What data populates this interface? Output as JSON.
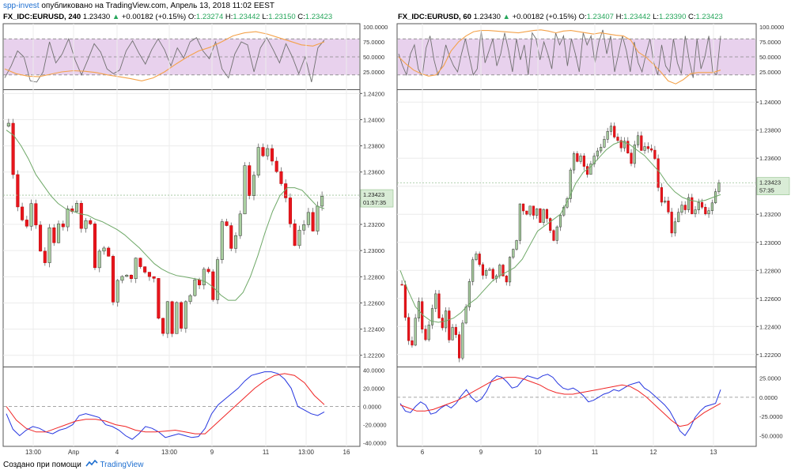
{
  "header": {
    "publisher": "spp-invest",
    "published_text": "опубликовано на TradingView.com, Апрель 13, 2018 11:02 EEST"
  },
  "footer": {
    "created_text": "Создано при помощи",
    "brand": "TradingView"
  },
  "colors": {
    "up_candle": "#a9cfa0",
    "down_candle": "#e8151d",
    "sma_line": "#6ea867",
    "osc_gray": "#707070",
    "osc_orange": "#f4a24a",
    "band_fill": "#e4c9ea",
    "macd_blue": "#2636e0",
    "macd_red": "#f02525"
  },
  "charts": [
    {
      "symbol": "FX_IDC:EURUSD, 240",
      "last": "1.23430",
      "change": "+0.00182 (+0.15%)",
      "o_label": "O:",
      "o": "1.23274",
      "h_label": "H:",
      "h": "1.23442",
      "l_label": "L:",
      "l": "1.23150",
      "c_label": "C:",
      "c": "1.23423",
      "price_tag": "1.23423",
      "countdown": "01:57:35",
      "top_ticks": [
        "100.0000",
        "75.0000",
        "50.0000",
        "25.0000"
      ],
      "price_ticks": [
        "1.24200",
        "1.24000",
        "1.23800",
        "1.23600",
        "1.23400",
        "1.23200",
        "1.23000",
        "1.22800",
        "1.22600",
        "1.22400",
        "1.22200"
      ],
      "bottom_ticks": [
        "40.0000",
        "20.0000",
        "0.0000",
        "-20.0000",
        "-40.0000"
      ],
      "x_ticks": [
        "13:00",
        "Апр",
        "4",
        "13:00",
        "9",
        "11",
        "13:00",
        "16"
      ]
    },
    {
      "symbol": "FX_IDC:EURUSD, 60",
      "last": "1.23430",
      "change": "+0.00182 (+0.15%)",
      "o_label": "O:",
      "o": "1.23407",
      "h_label": "H:",
      "h": "1.23442",
      "l_label": "L:",
      "l": "1.23390",
      "c_label": "C:",
      "c": "1.23423",
      "price_tag": "1.23423",
      "countdown": "57:35",
      "top_ticks": [
        "100.0000",
        "75.0000",
        "50.0000",
        "25.0000"
      ],
      "price_ticks": [
        "1.24000",
        "1.23800",
        "1.23600",
        "1.23400",
        "1.23200",
        "1.23000",
        "1.22800",
        "1.22600",
        "1.22400",
        "1.22200"
      ],
      "bottom_ticks": [
        "25.0000",
        "0.0000",
        "-25.0000",
        "-50.0000"
      ],
      "x_ticks": [
        "6",
        "9",
        "10",
        "11",
        "12",
        "13"
      ]
    }
  ],
  "chart_data": [
    {
      "type": "candlestick",
      "symbol": "FX_IDC:EURUSD",
      "timeframe": "240",
      "ylim": [
        1.2212,
        1.2422
      ],
      "x_labels": [
        "13:00",
        "Апр",
        "4",
        "13:00",
        "9",
        "11",
        "13:00",
        "16"
      ],
      "close_path": [
        1.2395,
        1.2356,
        1.2332,
        1.2322,
        1.2318,
        1.2338,
        1.2322,
        1.2302,
        1.2293,
        1.2318,
        1.2306,
        1.2322,
        1.2318,
        1.233,
        1.2328,
        1.2336,
        1.2316,
        1.2322,
        1.2318,
        1.2286,
        1.2302,
        1.2302,
        1.2298,
        1.2262,
        1.2278,
        1.2282,
        1.2282,
        1.2278,
        1.2292,
        1.2286,
        1.2282,
        1.228,
        1.2278,
        1.2248,
        1.2236,
        1.2262,
        1.2238,
        1.2262,
        1.2242,
        1.2262,
        1.2266,
        1.2278,
        1.2272,
        1.2284,
        1.2282,
        1.2262,
        1.2292,
        1.2322,
        1.2318,
        1.2302,
        1.2312,
        1.2328,
        1.2366,
        1.2342,
        1.2358,
        1.238,
        1.2374,
        1.2376,
        1.2366,
        1.2358,
        1.235,
        1.2338,
        1.2318,
        1.2302,
        1.2318,
        1.2322,
        1.233,
        1.2316,
        1.2334,
        1.2342
      ],
      "sma_path": [
        1.2392,
        1.2388,
        1.238,
        1.237,
        1.2358,
        1.235,
        1.2342,
        1.2336,
        1.2332,
        1.233,
        1.2328,
        1.2327,
        1.2324,
        1.2322,
        1.2319,
        1.2316,
        1.2312,
        1.2307,
        1.2302,
        1.2296,
        1.229,
        1.2286,
        1.2283,
        1.2281,
        1.228,
        1.2279,
        1.2278,
        1.2276,
        1.2272,
        1.2266,
        1.2262,
        1.2262,
        1.2268,
        1.228,
        1.2296,
        1.2314,
        1.233,
        1.2342,
        1.2348,
        1.2348,
        1.2346,
        1.234,
        1.2334,
        1.2332
      ],
      "stoch_rsi_k": [
        15,
        35,
        60,
        50,
        10,
        8,
        25,
        75,
        40,
        55,
        80,
        45,
        20,
        45,
        72,
        58,
        30,
        22,
        28,
        60,
        77,
        56,
        38,
        62,
        80,
        62,
        35,
        65,
        48,
        75,
        82,
        60,
        47,
        75,
        30,
        15,
        55,
        75,
        70,
        25,
        65,
        82,
        62,
        40,
        72,
        50,
        22,
        50,
        8,
        65,
        78
      ],
      "stoch_rsi_d": [
        30,
        22,
        18,
        17,
        21,
        25,
        27,
        26,
        24,
        20,
        17,
        14,
        10,
        15,
        25,
        38,
        50,
        60,
        66,
        75,
        85,
        90,
        92,
        88,
        82,
        76,
        70,
        68,
        75
      ],
      "macd": [
        -8,
        -25,
        -32,
        -26,
        -22,
        -24,
        -28,
        -30,
        -26,
        -24,
        -20,
        -10,
        -8,
        -10,
        -12,
        -20,
        -22,
        -26,
        -32,
        -36,
        -30,
        -22,
        -24,
        -28,
        -34,
        -32,
        -30,
        -32,
        -34,
        -33,
        -24,
        -8,
        2,
        8,
        14,
        20,
        28,
        34,
        36,
        38,
        38,
        36,
        30,
        20,
        0,
        -4,
        -8,
        -10,
        -6
      ],
      "macd_signal": [
        0,
        -15,
        -24,
        -28,
        -28,
        -24,
        -20,
        -16,
        -14,
        -14,
        -16,
        -20,
        -22,
        -26,
        -28,
        -28,
        -27,
        -26,
        -28,
        -30,
        -30,
        -20,
        -10,
        0,
        10,
        20,
        28,
        34,
        36,
        34,
        26,
        12,
        2
      ]
    },
    {
      "type": "candlestick",
      "symbol": "FX_IDC:EURUSD",
      "timeframe": "60",
      "ylim": [
        1.2212,
        1.2408
      ],
      "x_labels": [
        "6",
        "9",
        "10",
        "11",
        "12",
        "13"
      ],
      "close_path": [
        1.227,
        1.2248,
        1.2232,
        1.2228,
        1.2244,
        1.2256,
        1.2238,
        1.223,
        1.224,
        1.2252,
        1.2262,
        1.2246,
        1.224,
        1.2252,
        1.2232,
        1.224,
        1.2236,
        1.2218,
        1.2244,
        1.2252,
        1.227,
        1.2286,
        1.229,
        1.2282,
        1.2276,
        1.228,
        1.2282,
        1.2276,
        1.2278,
        1.2284,
        1.2278,
        1.2272,
        1.229,
        1.2296,
        1.23,
        1.2326,
        1.2322,
        1.232,
        1.2324,
        1.2318,
        1.2322,
        1.2316,
        1.2324,
        1.2318,
        1.231,
        1.2302,
        1.2312,
        1.232,
        1.2326,
        1.233,
        1.235,
        1.2362,
        1.2356,
        1.236,
        1.2352,
        1.2348,
        1.2356,
        1.2362,
        1.2366,
        1.237,
        1.2375,
        1.238,
        1.2385,
        1.2376,
        1.2372,
        1.2366,
        1.237,
        1.2362,
        1.2356,
        1.2368,
        1.2376,
        1.2366,
        1.237,
        1.2368,
        1.2366,
        1.236,
        1.234,
        1.233,
        1.2328,
        1.232,
        1.2306,
        1.2314,
        1.232,
        1.2326,
        1.2322,
        1.233,
        1.2322,
        1.2324,
        1.233,
        1.2326,
        1.2322,
        1.2324,
        1.233,
        1.2336,
        1.2342
      ],
      "sma_path": [
        1.228,
        1.2266,
        1.2254,
        1.2248,
        1.2244,
        1.2243,
        1.2244,
        1.2246,
        1.225,
        1.2256,
        1.226,
        1.2266,
        1.2272,
        1.2276,
        1.2279,
        1.2282,
        1.2288,
        1.2298,
        1.2308,
        1.2312,
        1.2316,
        1.232,
        1.233,
        1.2342,
        1.235,
        1.2354,
        1.236,
        1.2366,
        1.237,
        1.2372,
        1.237,
        1.2366,
        1.2362,
        1.2356,
        1.235,
        1.2342,
        1.2336,
        1.2332,
        1.233,
        1.2329,
        1.233,
        1.2332,
        1.2334
      ],
      "stoch_rsi_k": [
        55,
        35,
        20,
        55,
        70,
        30,
        18,
        65,
        85,
        45,
        20,
        35,
        70,
        50,
        35,
        25,
        55,
        80,
        50,
        20,
        30,
        95,
        40,
        60,
        80,
        35,
        55,
        90,
        60,
        25,
        80,
        45,
        70,
        20,
        90,
        80,
        45,
        75,
        55,
        30,
        90,
        70,
        85,
        35,
        80,
        55,
        25,
        90,
        70,
        85,
        40,
        75,
        95,
        55,
        85,
        25,
        55,
        85,
        60,
        25,
        75,
        40,
        25,
        55,
        80,
        40,
        20,
        70,
        35,
        25,
        80,
        40,
        22,
        85,
        45,
        15,
        80,
        30,
        50,
        85,
        25,
        20,
        85
      ],
      "stoch_rsi_d": [
        50,
        38,
        28,
        22,
        18,
        20,
        35,
        60,
        75,
        85,
        92,
        94,
        94,
        93,
        92,
        91,
        90,
        92,
        94,
        95,
        93,
        90,
        93,
        94,
        92,
        90,
        88,
        90,
        88,
        86,
        85,
        78,
        58,
        50,
        38,
        25,
        10,
        5,
        12,
        22,
        24,
        24,
        24,
        28
      ]
    }
  ]
}
